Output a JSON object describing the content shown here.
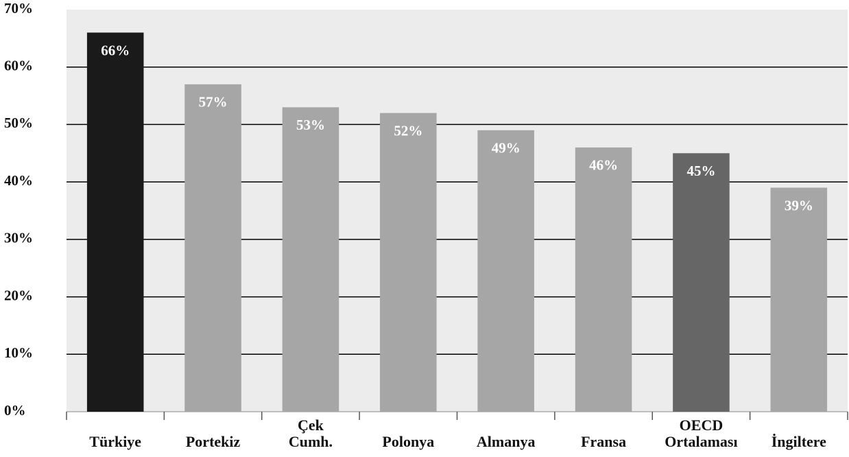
{
  "chart_data": {
    "type": "bar",
    "categories": [
      "Türkiye",
      "Portekiz",
      "Çek Cumh.",
      "Polonya",
      "Almanya",
      "Fransa",
      "OECD Ortalaması",
      "İngiltere"
    ],
    "values": [
      66,
      57,
      53,
      52,
      49,
      46,
      45,
      39
    ],
    "value_labels": [
      "66%",
      "57%",
      "53%",
      "52%",
      "49%",
      "46%",
      "45%",
      "39%"
    ],
    "colors": [
      "#1a1a1a",
      "#a6a6a6",
      "#a6a6a6",
      "#a6a6a6",
      "#a6a6a6",
      "#a6a6a6",
      "#666666",
      "#a6a6a6"
    ],
    "ylim": [
      0,
      70
    ],
    "yticks": [
      {
        "value": 0,
        "label": "0%"
      },
      {
        "value": 10,
        "label": "10%"
      },
      {
        "value": 20,
        "label": "20%"
      },
      {
        "value": 30,
        "label": "30%"
      },
      {
        "value": 40,
        "label": "40%"
      },
      {
        "value": 50,
        "label": "50%"
      },
      {
        "value": 60,
        "label": "60%"
      },
      {
        "value": 70,
        "label": "70%"
      }
    ],
    "grid": true
  }
}
